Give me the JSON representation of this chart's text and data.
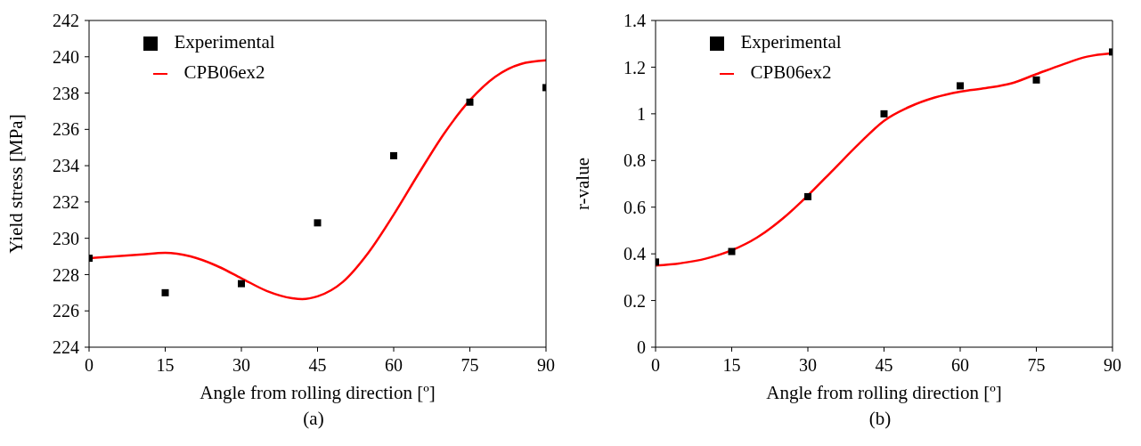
{
  "chart_data": [
    {
      "type": "scatter",
      "xlabel": "Angle from rolling direction [º]",
      "ylabel": "Yield stress [MPa]",
      "annotations": [
        "(a)"
      ],
      "xlim": [
        0,
        90
      ],
      "xticks": [
        0,
        15,
        30,
        45,
        60,
        75,
        90
      ],
      "ylim": [
        224,
        242
      ],
      "yticks": [
        224,
        226,
        228,
        230,
        232,
        234,
        236,
        238,
        240,
        242
      ],
      "legend": "top left",
      "series": [
        {
          "name": "Experimental",
          "type": "scatter",
          "marker": "square",
          "color": "#000000",
          "x": [
            0,
            15,
            30,
            45,
            60,
            75,
            90
          ],
          "values": [
            228.9,
            227.0,
            227.5,
            230.85,
            234.55,
            237.5,
            238.3
          ]
        },
        {
          "name": "CPB06ex2",
          "type": "line",
          "marker": "none",
          "line_style": "solid",
          "color": "#ff0000",
          "x": [
            0,
            5,
            10,
            15,
            20,
            25,
            30,
            35,
            40,
            42,
            45,
            50,
            55,
            60,
            65,
            70,
            75,
            80,
            85,
            90
          ],
          "values": [
            228.9,
            229.0,
            229.1,
            229.2,
            229.0,
            228.5,
            227.8,
            227.1,
            226.7,
            226.65,
            226.8,
            227.6,
            229.2,
            231.3,
            233.6,
            235.8,
            237.6,
            238.9,
            239.6,
            239.8
          ]
        }
      ]
    },
    {
      "type": "scatter",
      "xlabel": "Angle from rolling direction [º]",
      "ylabel": "r-value",
      "annotations": [
        "(b)"
      ],
      "xlim": [
        0,
        90
      ],
      "xticks": [
        0,
        15,
        30,
        45,
        60,
        75,
        90
      ],
      "ylim": [
        0,
        1.4
      ],
      "yticks": [
        0,
        0.2,
        0.4,
        0.6,
        0.8,
        1,
        1.2,
        1.4
      ],
      "legend": "top left",
      "series": [
        {
          "name": "Experimental",
          "type": "scatter",
          "marker": "square",
          "color": "#000000",
          "x": [
            0,
            15,
            30,
            45,
            60,
            75,
            90
          ],
          "values": [
            0.365,
            0.41,
            0.645,
            1.0,
            1.12,
            1.145,
            1.265
          ]
        },
        {
          "name": "CPB06ex2",
          "type": "line",
          "marker": "none",
          "line_style": "solid",
          "color": "#ff0000",
          "x": [
            0,
            5,
            10,
            15,
            20,
            25,
            30,
            35,
            40,
            45,
            50,
            55,
            60,
            65,
            70,
            75,
            80,
            85,
            90
          ],
          "values": [
            0.35,
            0.36,
            0.38,
            0.415,
            0.47,
            0.55,
            0.65,
            0.76,
            0.87,
            0.97,
            1.03,
            1.07,
            1.095,
            1.11,
            1.13,
            1.17,
            1.21,
            1.245,
            1.26
          ]
        }
      ]
    }
  ]
}
